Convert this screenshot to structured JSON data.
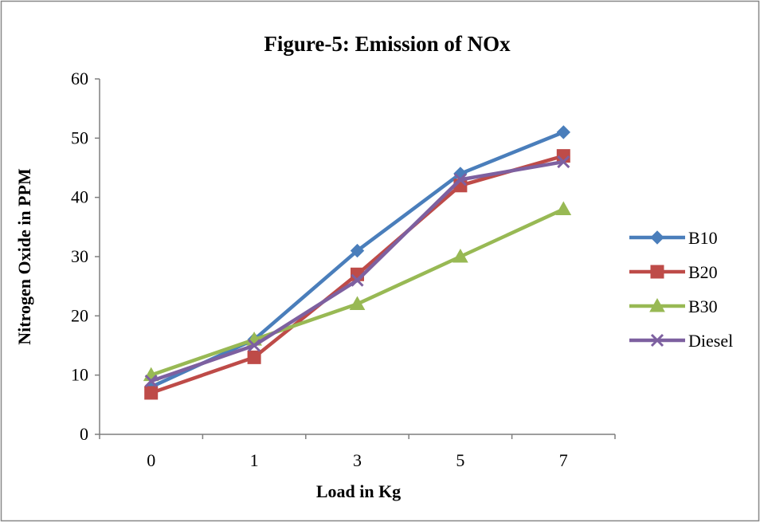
{
  "chart_data": {
    "type": "line",
    "title": "Figure-5: Emission of NOx",
    "xlabel": "Load in Kg",
    "ylabel": "Nitrogen Oxide in PPM",
    "categories": [
      "0",
      "1",
      "3",
      "5",
      "7"
    ],
    "ylim": [
      0,
      60
    ],
    "yticks": [
      "0",
      "10",
      "20",
      "30",
      "40",
      "50",
      "60"
    ],
    "grid": false,
    "legend_position": "right",
    "series": [
      {
        "name": "B10",
        "values": [
          8,
          16,
          31,
          44,
          51
        ],
        "color": "#4a7ebb",
        "marker": "diamond"
      },
      {
        "name": "B20",
        "values": [
          7,
          13,
          27,
          42,
          47
        ],
        "color": "#be4b48",
        "marker": "square"
      },
      {
        "name": "B30",
        "values": [
          10,
          16,
          22,
          30,
          38
        ],
        "color": "#98b954",
        "marker": "triangle"
      },
      {
        "name": "Diesel",
        "values": [
          9,
          15,
          26,
          43,
          46
        ],
        "color": "#7d60a0",
        "marker": "x"
      }
    ]
  }
}
